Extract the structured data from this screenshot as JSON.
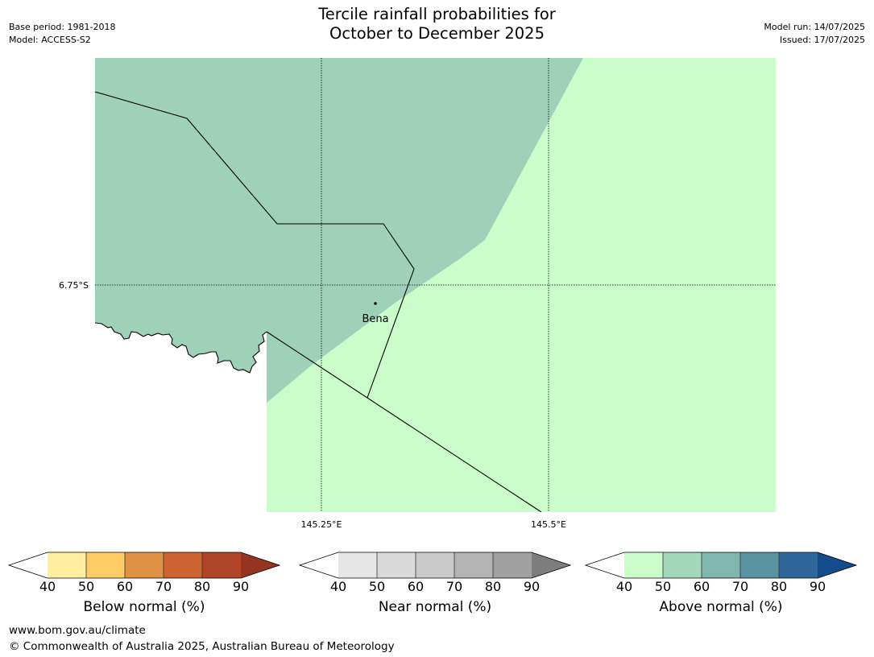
{
  "title": {
    "line1": "Tercile rainfall probabilities for",
    "line2": "October to December 2025"
  },
  "meta": {
    "base_period": "Base period: 1981-2018",
    "model": "Model: ACCESS-S2",
    "model_run": "Model run: 14/07/2025",
    "issued": "Issued: 17/07/2025"
  },
  "map": {
    "lat_label": "6.75°S",
    "lon_labels": [
      "145.25°E",
      "145.5°E"
    ],
    "place_name": "Bena",
    "colors": {
      "above_50_60": "#9fd1ba",
      "above_40_50": "#cafdca",
      "ocean": "#ffffff"
    }
  },
  "legends": [
    {
      "label": "Below normal (%)",
      "ticks": [
        "40",
        "50",
        "60",
        "70",
        "80",
        "90"
      ],
      "colors": [
        "#ffffff",
        "#ffeda0",
        "#fecb65",
        "#e09244",
        "#cd6331",
        "#b04527",
        "#953520"
      ]
    },
    {
      "label": "Near normal (%)",
      "ticks": [
        "40",
        "50",
        "60",
        "70",
        "80",
        "90"
      ],
      "colors": [
        "#ffffff",
        "#e6e6e6",
        "#d9d9d9",
        "#cacaca",
        "#b4b4b4",
        "#a0a0a0",
        "#7d7d7d"
      ]
    },
    {
      "label": "Above normal (%)",
      "ticks": [
        "40",
        "50",
        "60",
        "70",
        "80",
        "90"
      ],
      "colors": [
        "#ffffff",
        "#cafdca",
        "#a4d8bc",
        "#80b6ae",
        "#5a939f",
        "#30679a",
        "#134b8c"
      ]
    }
  ],
  "footer": {
    "website": "www.bom.gov.au/climate",
    "copyright": "© Commonwealth of Australia 2025, Australian Bureau of Meteorology"
  }
}
